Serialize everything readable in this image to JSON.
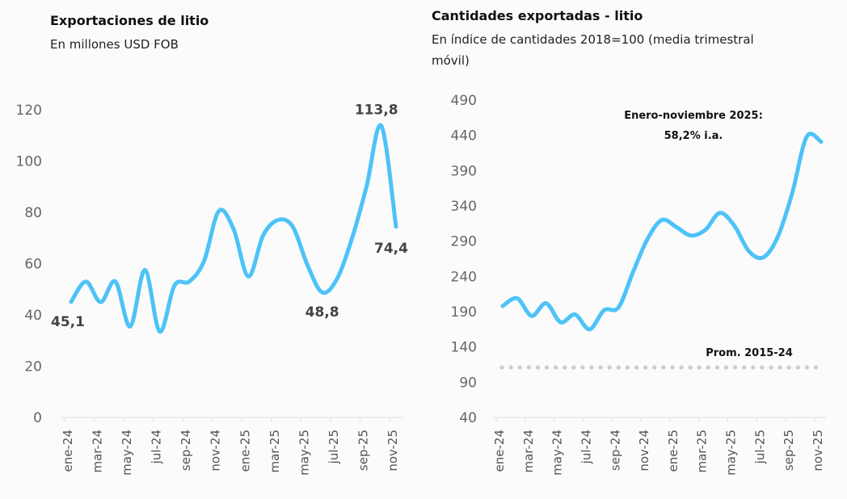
{
  "chart_data": [
    {
      "type": "line",
      "title": "Exportaciones de litio",
      "subtitle": "En millones USD FOB",
      "xlabel": "",
      "ylabel": "",
      "ylim": [
        0,
        120
      ],
      "yticks": [
        0,
        20,
        40,
        60,
        80,
        100,
        120
      ],
      "x": [
        "ene-24",
        "feb-24",
        "mar-24",
        "abr-24",
        "may-24",
        "jun-24",
        "jul-24",
        "ago-24",
        "sep-24",
        "oct-24",
        "nov-24",
        "dic-24",
        "ene-25",
        "feb-25",
        "mar-25",
        "abr-25",
        "may-25",
        "jun-25",
        "jul-25",
        "ago-25",
        "sep-25",
        "oct-25",
        "nov-25"
      ],
      "xtick_labels": [
        "ene-24",
        "mar-24",
        "may-24",
        "jul-24",
        "sep-24",
        "nov-24",
        "ene-25",
        "mar-25",
        "may-25",
        "jul-25",
        "sep-25",
        "nov-25"
      ],
      "series": [
        {
          "name": "Exportaciones de litio",
          "color": "#4dc3f7",
          "values": [
            45.1,
            53,
            45,
            53,
            35.5,
            57.5,
            33.5,
            51.5,
            53,
            61,
            80.5,
            73.5,
            55,
            71,
            77,
            74.5,
            59.5,
            48.8,
            54,
            69.5,
            90,
            113.8,
            74.4
          ]
        }
      ],
      "data_labels": [
        {
          "x": "ene-24",
          "text": "45,1"
        },
        {
          "x": "jun-25",
          "text": "48,8"
        },
        {
          "x": "oct-25",
          "text": "113,8"
        },
        {
          "x": "nov-25",
          "text": "74,4"
        }
      ],
      "grid": false
    },
    {
      "type": "line",
      "title": "Cantidades exportadas - litio",
      "subtitle_line1": "En índice de cantidades 2018=100 (media trimestral",
      "subtitle_line2": "móvil)",
      "xlabel": "",
      "ylabel": "",
      "ylim": [
        40,
        490
      ],
      "yticks": [
        40,
        90,
        140,
        190,
        240,
        290,
        340,
        390,
        440,
        490
      ],
      "x": [
        "ene-24",
        "feb-24",
        "mar-24",
        "abr-24",
        "may-24",
        "jun-24",
        "jul-24",
        "ago-24",
        "sep-24",
        "oct-24",
        "nov-24",
        "dic-24",
        "ene-25",
        "feb-25",
        "mar-25",
        "abr-25",
        "may-25",
        "jun-25",
        "jul-25",
        "ago-25",
        "sep-25",
        "oct-25",
        "nov-25"
      ],
      "xtick_labels": [
        "ene-24",
        "mar-24",
        "may-24",
        "jul-24",
        "sep-24",
        "nov-24",
        "ene-25",
        "mar-25",
        "may-25",
        "jul-25",
        "sep-25",
        "nov-25"
      ],
      "series": [
        {
          "name": "Índice de cantidades",
          "color": "#4dc3f7",
          "values": [
            198,
            209,
            184,
            202,
            175,
            186,
            165,
            192,
            196,
            246,
            293,
            320,
            310,
            298,
            306,
            330,
            312,
            276,
            267,
            296,
            358,
            438,
            431
          ]
        },
        {
          "name": "Prom. 2015-24",
          "color": "#cccccc",
          "style": "dotted",
          "value": 111
        }
      ],
      "annotations": [
        {
          "text": "Enero-noviembre 2025:"
        },
        {
          "text": "58,2% i.a."
        },
        {
          "text": "Prom. 2015-24"
        }
      ],
      "grid": false
    }
  ]
}
